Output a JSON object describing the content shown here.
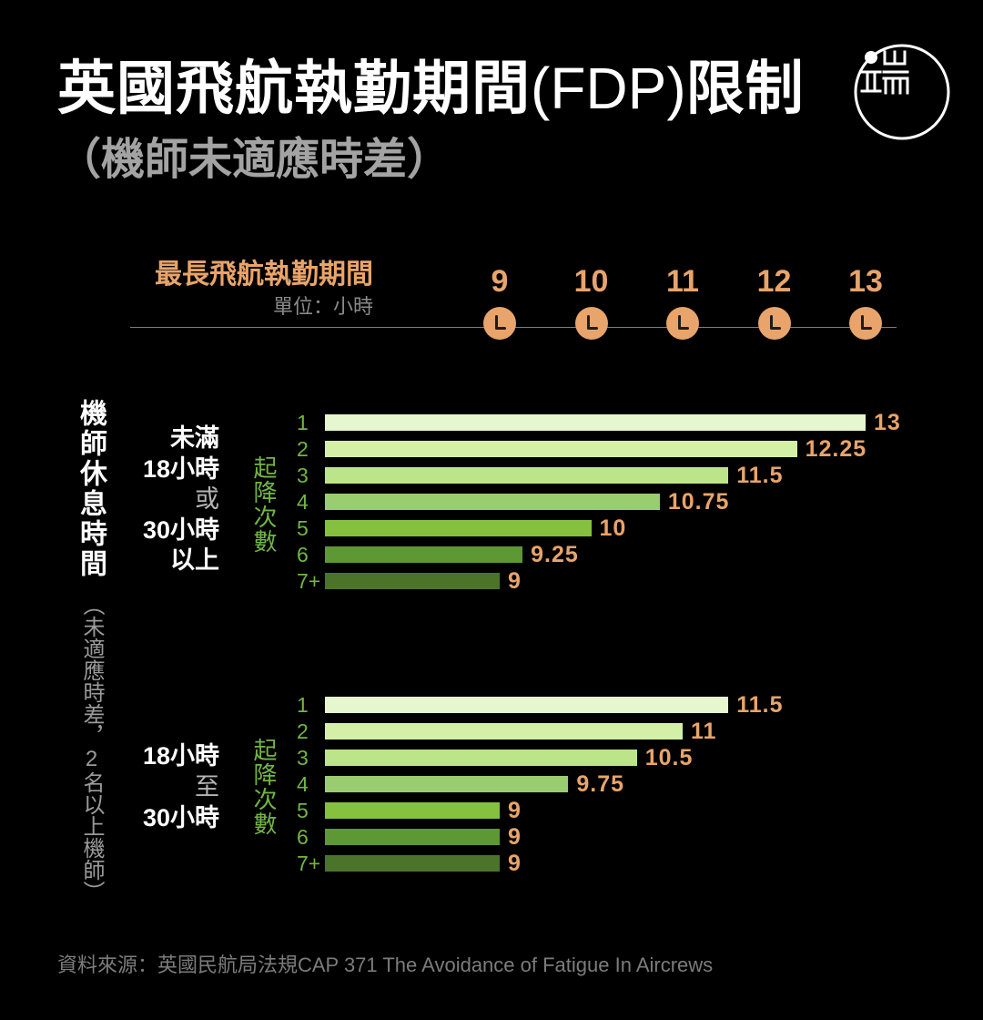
{
  "title": {
    "part1": "英國飛航執勤期間",
    "part2": "(FDP)",
    "part3": "限制"
  },
  "subtitle": "（機師未適應時差）",
  "side_label": {
    "main": "機師休息時間",
    "note": "（未適應時差，2名以上機師）"
  },
  "source": "資料來源：英國民航局法規CAP 371 The Avoidance of Fatigue In Aircrews",
  "icons": {
    "logo": "initium-logo",
    "tick_marker": "clock-icon"
  },
  "colors": {
    "background": "#000000",
    "accent": "#e8a46a",
    "label_green": "#72b545",
    "bar_shades": [
      "#e6f7cf",
      "#d3f0a6",
      "#bce58a",
      "#99cd6f",
      "#86c03f",
      "#5e9834",
      "#4b742a"
    ]
  },
  "chart_data": {
    "type": "bar",
    "orientation": "horizontal",
    "xlabel": "最長飛航執勤期間",
    "xunit": "單位：小時",
    "ylabel": "起降次數",
    "x_ticks": [
      9,
      10,
      11,
      12,
      13
    ],
    "categories": [
      "1",
      "2",
      "3",
      "4",
      "5",
      "6",
      "7+"
    ],
    "series": [
      {
        "label_lines": [
          "未滿",
          "18小時",
          "或",
          "30小時",
          "以上"
        ],
        "values": [
          13,
          12.25,
          11.5,
          10.75,
          10,
          9.25,
          9
        ]
      },
      {
        "label_lines": [
          "18小時",
          "至",
          "30小時"
        ],
        "values": [
          11.5,
          11,
          10.5,
          9.75,
          9,
          9,
          9
        ]
      }
    ],
    "grid": false,
    "legend": "none"
  }
}
